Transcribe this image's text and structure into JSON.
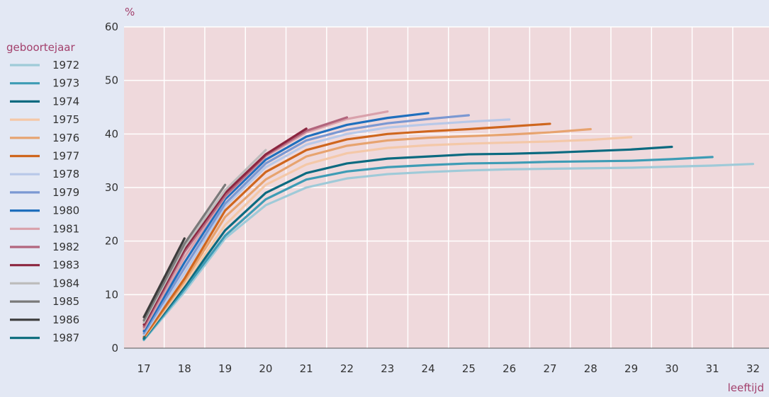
{
  "chart_data": {
    "type": "line",
    "ylabel": "%",
    "xlabel": "leeftijd",
    "legend_title": "geboortejaar",
    "legend_position": "left",
    "xlim": [
      17,
      32
    ],
    "ylim": [
      0,
      60
    ],
    "x_ticks": [
      17,
      18,
      19,
      20,
      21,
      22,
      23,
      24,
      25,
      26,
      27,
      28,
      29,
      30,
      31,
      32
    ],
    "y_ticks": [
      0,
      10,
      20,
      30,
      40,
      50,
      60
    ],
    "grid": true,
    "plot_background": "#efd9dc",
    "series": [
      {
        "name": "1972",
        "color": "#9fcad8",
        "x": [
          17,
          18,
          19,
          20,
          21,
          22,
          23,
          24,
          25,
          26,
          27,
          28,
          29,
          30,
          31,
          32
        ],
        "y": [
          1.5,
          10.5,
          20.5,
          26.7,
          30.0,
          31.7,
          32.5,
          32.9,
          33.2,
          33.4,
          33.5,
          33.6,
          33.7,
          33.9,
          34.1,
          34.4
        ]
      },
      {
        "name": "1973",
        "color": "#3e9cb5",
        "x": [
          17,
          18,
          19,
          20,
          21,
          22,
          23,
          24,
          25,
          26,
          27,
          28,
          29,
          30,
          31
        ],
        "y": [
          1.6,
          11.0,
          21.0,
          27.8,
          31.5,
          33.0,
          33.8,
          34.2,
          34.5,
          34.6,
          34.8,
          34.9,
          35.0,
          35.3,
          35.7
        ]
      },
      {
        "name": "1974",
        "color": "#0b6a80",
        "x": [
          17,
          18,
          19,
          20,
          21,
          22,
          23,
          24,
          25,
          26,
          27,
          28,
          29,
          30
        ],
        "y": [
          1.8,
          11.5,
          22.0,
          29.0,
          32.7,
          34.5,
          35.4,
          35.8,
          36.2,
          36.3,
          36.5,
          36.8,
          37.1,
          37.6
        ]
      },
      {
        "name": "1975",
        "color": "#f4c8a8",
        "x": [
          17,
          18,
          19,
          20,
          21,
          22,
          23,
          24,
          25,
          26,
          27,
          28,
          29
        ],
        "y": [
          1.9,
          12.0,
          23.0,
          30.5,
          34.3,
          36.4,
          37.4,
          37.9,
          38.2,
          38.4,
          38.6,
          38.9,
          39.4
        ]
      },
      {
        "name": "1976",
        "color": "#e7a36f",
        "x": [
          17,
          18,
          19,
          20,
          21,
          22,
          23,
          24,
          25,
          26,
          27,
          28
        ],
        "y": [
          2.0,
          12.5,
          24.5,
          31.5,
          35.8,
          37.8,
          38.8,
          39.3,
          39.6,
          39.9,
          40.3,
          40.9
        ]
      },
      {
        "name": "1977",
        "color": "#cf661e",
        "x": [
          17,
          18,
          19,
          20,
          21,
          22,
          23,
          24,
          25,
          26,
          27
        ],
        "y": [
          2.1,
          13.0,
          25.7,
          32.9,
          37.0,
          39.0,
          40.0,
          40.5,
          40.9,
          41.4,
          41.9
        ]
      },
      {
        "name": "1978",
        "color": "#b8c8e8",
        "x": [
          17,
          18,
          19,
          20,
          21,
          22,
          23,
          24,
          25,
          26
        ],
        "y": [
          2.5,
          14.0,
          26.5,
          33.8,
          38.0,
          40.0,
          41.2,
          41.8,
          42.3,
          42.7
        ]
      },
      {
        "name": "1979",
        "color": "#7b98d2",
        "x": [
          17,
          18,
          19,
          20,
          21,
          22,
          23,
          24,
          25
        ],
        "y": [
          2.8,
          15.0,
          27.0,
          34.5,
          38.8,
          40.8,
          42.0,
          42.8,
          43.5
        ]
      },
      {
        "name": "1980",
        "color": "#1f6fbd",
        "x": [
          17,
          18,
          19,
          20,
          21,
          22,
          23,
          24
        ],
        "y": [
          3.2,
          16.0,
          27.8,
          35.2,
          39.5,
          41.7,
          43.0,
          43.9
        ]
      },
      {
        "name": "1981",
        "color": "#d9a1ab",
        "x": [
          17,
          18,
          19,
          20,
          21,
          22,
          23
        ],
        "y": [
          3.6,
          17.0,
          28.3,
          35.8,
          40.3,
          42.8,
          44.2
        ]
      },
      {
        "name": "1982",
        "color": "#b2657d",
        "x": [
          17,
          18,
          19,
          20,
          21,
          22
        ],
        "y": [
          4.0,
          18.0,
          28.5,
          36.0,
          40.6,
          43.1
        ]
      },
      {
        "name": "1983",
        "color": "#8c2640",
        "x": [
          17,
          18,
          19,
          20,
          21
        ],
        "y": [
          4.4,
          18.5,
          29.0,
          36.2,
          41.0
        ]
      },
      {
        "name": "1984",
        "color": "#bdbdbd",
        "x": [
          17,
          18,
          19,
          20
        ],
        "y": [
          4.8,
          19.0,
          29.5,
          37.0
        ]
      },
      {
        "name": "1985",
        "color": "#7a7a7a",
        "x": [
          17,
          18,
          19
        ],
        "y": [
          5.2,
          19.5,
          30.5
        ]
      },
      {
        "name": "1986",
        "color": "#3c3c3c",
        "x": [
          17,
          18
        ],
        "y": [
          5.8,
          20.5
        ]
      },
      {
        "name": "1987",
        "color": "#127080",
        "x": [
          17
        ],
        "y": [
          1.8
        ]
      }
    ]
  }
}
